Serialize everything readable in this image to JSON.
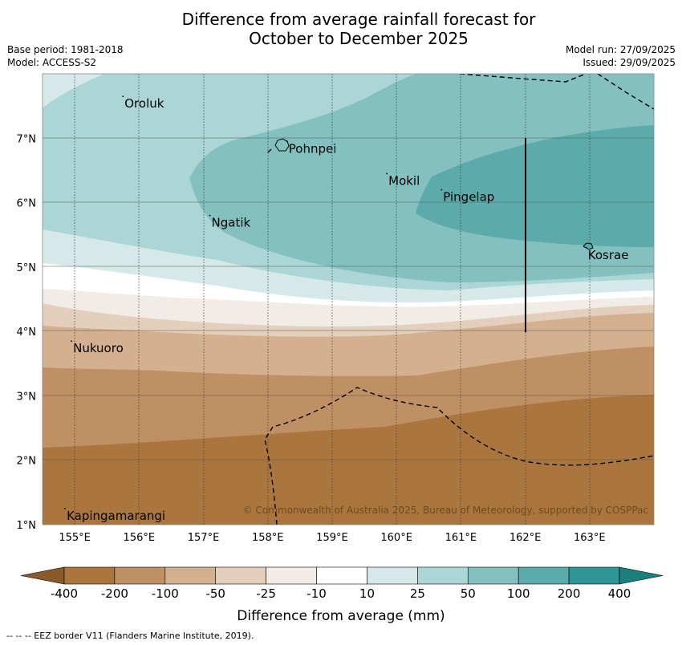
{
  "title": {
    "line1": "Difference from average rainfall forecast for",
    "line2": "October to December 2025"
  },
  "meta": {
    "base_period": "Base period: 1981-2018",
    "model": "Model: ACCESS-S2",
    "model_run": "Model run: 27/09/2025",
    "issued": "Issued: 29/09/2025"
  },
  "axes": {
    "lon_ticks": [
      "155°E",
      "156°E",
      "157°E",
      "158°E",
      "159°E",
      "160°E",
      "161°E",
      "162°E",
      "163°E"
    ],
    "lat_ticks": [
      "7°N",
      "6°N",
      "5°N",
      "4°N",
      "3°N",
      "2°N",
      "1°N"
    ]
  },
  "places": [
    {
      "name": "Oroluk",
      "lon": 155.75,
      "lat": 7.65
    },
    {
      "name": "Pohnpei",
      "lon": 158.3,
      "lat": 6.95
    },
    {
      "name": "Mokil",
      "lon": 159.85,
      "lat": 6.45
    },
    {
      "name": "Pingelap",
      "lon": 160.7,
      "lat": 6.2
    },
    {
      "name": "Ngatik",
      "lon": 157.1,
      "lat": 5.8
    },
    {
      "name": "Kosrae",
      "lon": 162.95,
      "lat": 5.3
    },
    {
      "name": "Nukuoro",
      "lon": 154.95,
      "lat": 3.85
    },
    {
      "name": "Kapingamarangi",
      "lon": 154.85,
      "lat": 1.25
    }
  ],
  "colorbar": {
    "labels": [
      "-400",
      "-200",
      "-100",
      "-50",
      "-25",
      "-10",
      "10",
      "25",
      "50",
      "100",
      "200",
      "400"
    ],
    "colors": [
      "#8a5a2b",
      "#ab763e",
      "#c09065",
      "#d3b08e",
      "#e3cfbc",
      "#f1ece5",
      "#ffffff",
      "#d5e9e8",
      "#acd6d5",
      "#84c0c0",
      "#5aabaa",
      "#2f9595",
      "#1c7f7e"
    ],
    "title": "Difference from average (mm)"
  },
  "copyright": "© Commonwealth of Australia 2025, Bureau of Meteorology, supported by COSPPac",
  "footer": "--  --  -- EEZ border V11 (Flanders Marine Institute, 2019)."
}
